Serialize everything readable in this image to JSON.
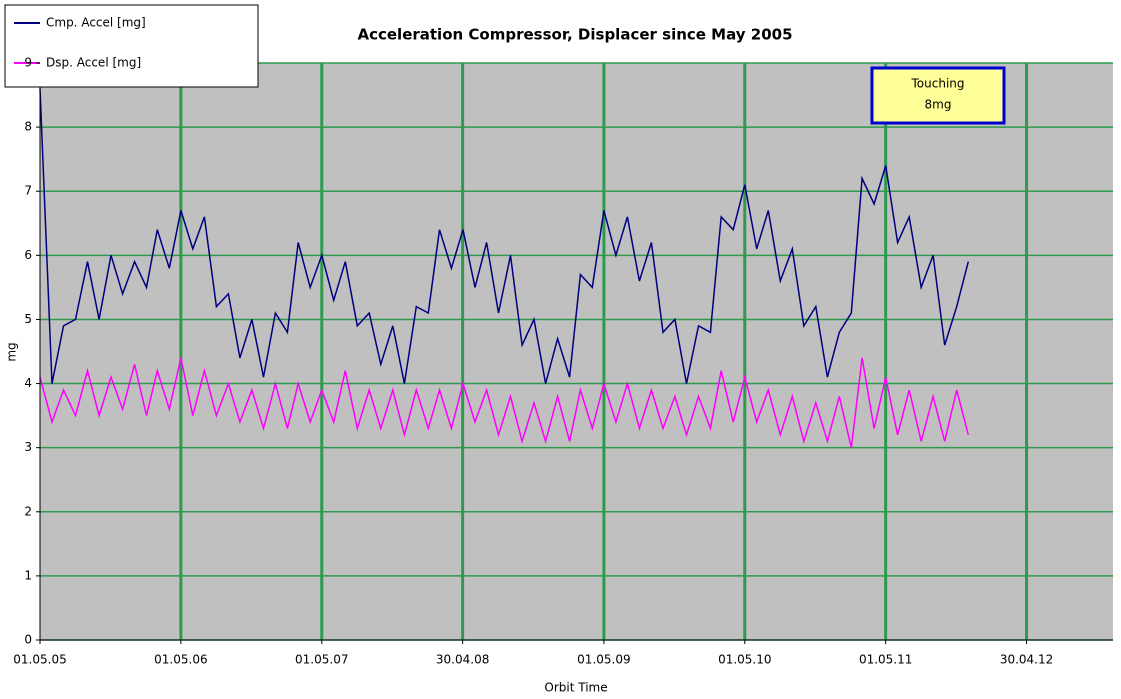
{
  "chart_data": {
    "type": "line",
    "title": "Acceleration Compressor, Displacer since May 2005",
    "x_label": "Orbit Time",
    "y_label": "mg",
    "annotation": [
      "Touching",
      "8mg"
    ],
    "grid": true,
    "legend": "upper left",
    "xlim": [
      "2005-05-01",
      "2012-12-10"
    ],
    "xticks": [
      {
        "value": "2005-05-01",
        "label": "01.05.05"
      },
      {
        "value": "2006-05-01",
        "label": "01.05.06"
      },
      {
        "value": "2007-05-01",
        "label": "01.05.07"
      },
      {
        "value": "2008-04-30",
        "label": "30.04.08"
      },
      {
        "value": "2009-05-01",
        "label": "01.05.09"
      },
      {
        "value": "2010-05-01",
        "label": "01.05.10"
      },
      {
        "value": "2011-05-01",
        "label": "01.05.11"
      },
      {
        "value": "2012-04-30",
        "label": "30.04.12"
      }
    ],
    "ylim": [
      0,
      9
    ],
    "yticks": [
      0,
      1,
      2,
      3,
      4,
      5,
      6,
      7,
      8,
      9
    ],
    "x": [
      "2005-05-01",
      "2005-06-01",
      "2005-07-01",
      "2005-08-01",
      "2005-09-01",
      "2005-10-01",
      "2005-11-01",
      "2005-12-01",
      "2006-01-01",
      "2006-02-01",
      "2006-03-01",
      "2006-04-01",
      "2006-05-01",
      "2006-06-01",
      "2006-07-01",
      "2006-08-01",
      "2006-09-01",
      "2006-10-01",
      "2006-11-01",
      "2006-12-01",
      "2007-01-01",
      "2007-02-01",
      "2007-03-01",
      "2007-04-01",
      "2007-05-01",
      "2007-06-01",
      "2007-07-01",
      "2007-08-01",
      "2007-09-01",
      "2007-10-01",
      "2007-11-01",
      "2007-12-01",
      "2008-01-01",
      "2008-02-01",
      "2008-03-01",
      "2008-04-01",
      "2008-05-01",
      "2008-06-01",
      "2008-07-01",
      "2008-08-01",
      "2008-09-01",
      "2008-10-01",
      "2008-11-01",
      "2008-12-01",
      "2009-01-01",
      "2009-02-01",
      "2009-03-01",
      "2009-04-01",
      "2009-05-01",
      "2009-06-01",
      "2009-07-01",
      "2009-08-01",
      "2009-09-01",
      "2009-10-01",
      "2009-11-01",
      "2009-12-01",
      "2010-01-01",
      "2010-02-01",
      "2010-03-01",
      "2010-04-01",
      "2010-05-01",
      "2010-06-01",
      "2010-07-01",
      "2010-08-01",
      "2010-09-01",
      "2010-10-01",
      "2010-11-01",
      "2010-12-01",
      "2011-01-01",
      "2011-02-01",
      "2011-03-01",
      "2011-04-01",
      "2011-05-01",
      "2011-06-01",
      "2011-07-01",
      "2011-08-01",
      "2011-09-01",
      "2011-10-01",
      "2011-11-01",
      "2011-12-01"
    ],
    "series": [
      {
        "name": "Cmp. Accel [mg]",
        "color": "#000080",
        "values": [
          8.6,
          4.0,
          4.9,
          5.0,
          5.9,
          5.0,
          6.0,
          5.4,
          5.9,
          5.5,
          6.4,
          5.8,
          6.7,
          6.1,
          6.6,
          5.2,
          5.4,
          4.4,
          5.0,
          4.1,
          5.1,
          4.8,
          6.2,
          5.5,
          6.0,
          5.3,
          5.9,
          4.9,
          5.1,
          4.3,
          4.9,
          4.0,
          5.2,
          5.1,
          6.4,
          5.8,
          6.4,
          5.5,
          6.2,
          5.1,
          6.0,
          4.6,
          5.0,
          4.0,
          4.7,
          4.1,
          5.7,
          5.5,
          6.7,
          6.0,
          6.6,
          5.6,
          6.2,
          4.8,
          5.0,
          4.0,
          4.9,
          4.8,
          6.6,
          6.4,
          7.1,
          6.1,
          6.7,
          5.6,
          6.1,
          4.9,
          5.2,
          4.1,
          4.8,
          5.1,
          7.2,
          6.8,
          7.4,
          6.2,
          6.6,
          5.5,
          6.0,
          4.6,
          5.2,
          5.9
        ]
      },
      {
        "name": "Dsp. Accel [mg]",
        "color": "#ff00ff",
        "values": [
          4.1,
          3.4,
          3.9,
          3.5,
          4.2,
          3.5,
          4.1,
          3.6,
          4.3,
          3.5,
          4.2,
          3.6,
          4.4,
          3.5,
          4.2,
          3.5,
          4.0,
          3.4,
          3.9,
          3.3,
          4.0,
          3.3,
          4.0,
          3.4,
          3.9,
          3.4,
          4.2,
          3.3,
          3.9,
          3.3,
          3.9,
          3.2,
          3.9,
          3.3,
          3.9,
          3.3,
          4.0,
          3.4,
          3.9,
          3.2,
          3.8,
          3.1,
          3.7,
          3.1,
          3.8,
          3.1,
          3.9,
          3.3,
          4.0,
          3.4,
          4.0,
          3.3,
          3.9,
          3.3,
          3.8,
          3.2,
          3.8,
          3.3,
          4.2,
          3.4,
          4.1,
          3.4,
          3.9,
          3.2,
          3.8,
          3.1,
          3.7,
          3.1,
          3.8,
          3.0,
          4.4,
          3.3,
          4.1,
          3.2,
          3.9,
          3.1,
          3.8,
          3.1,
          3.9,
          3.2
        ]
      }
    ]
  }
}
